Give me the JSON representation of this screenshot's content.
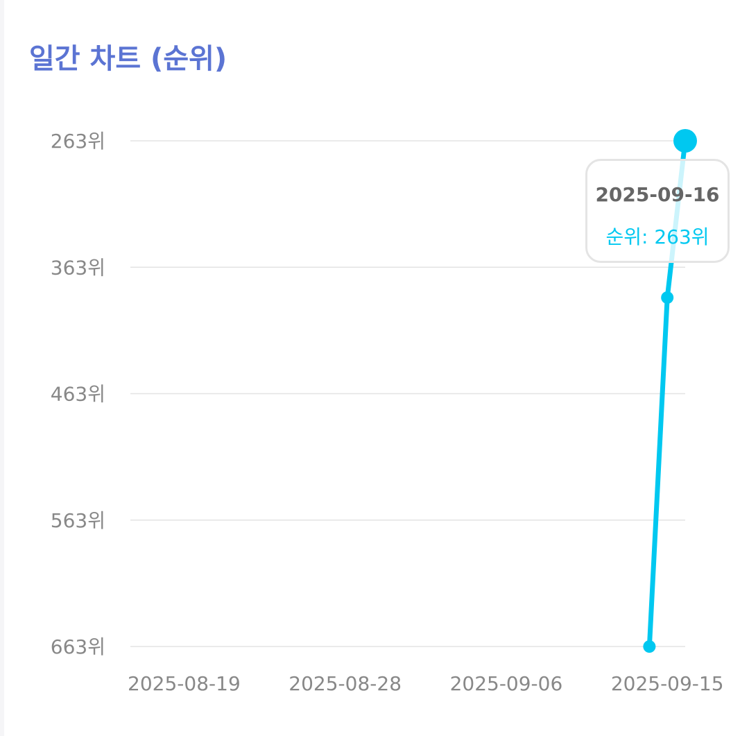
{
  "page": {
    "title": "일간 차트 (순위)"
  },
  "tooltip": {
    "date": "2025-09-16",
    "series_label": "순위",
    "value_text": "263위"
  },
  "colors": {
    "title": "#5b74d3",
    "line": "#00c8f0",
    "grid": "#e3e3e3",
    "tick_text": "#888888"
  },
  "chart_data": {
    "type": "line",
    "title": "일간 차트 (순위)",
    "xlabel": "",
    "ylabel": "",
    "x_ticks": [
      "2025-08-19",
      "2025-08-28",
      "2025-09-06",
      "2025-09-15"
    ],
    "y_ticks": [
      "263위",
      "363위",
      "463위",
      "563위",
      "663위"
    ],
    "y_tick_values": [
      263,
      363,
      463,
      563,
      663
    ],
    "ylim": [
      663,
      263
    ],
    "y_inverted": true,
    "xlim": [
      "2025-08-16",
      "2025-09-16"
    ],
    "grid": true,
    "series": [
      {
        "x": [
          "2025-09-14",
          "2025-09-15",
          "2025-09-16"
        ],
        "y": [
          663,
          387,
          263
        ]
      }
    ],
    "highlighted_point": {
      "x": "2025-09-16",
      "y": 263
    }
  }
}
